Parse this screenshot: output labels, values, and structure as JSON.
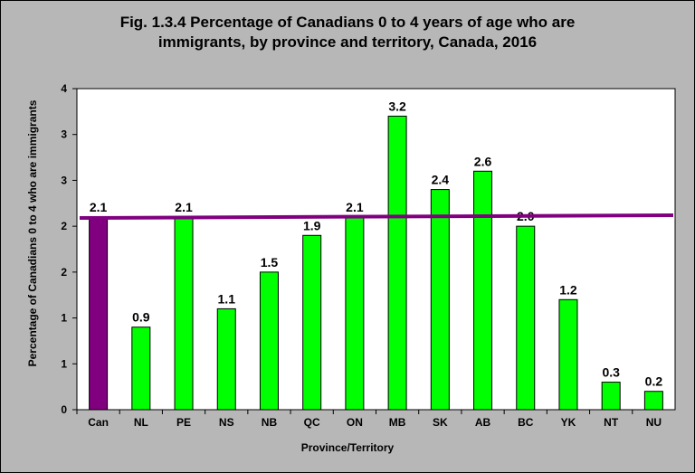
{
  "chart_data": {
    "type": "bar",
    "title_lines": [
      "Fig. 1.3.4 Percentage of Canadians 0 to 4 years of age who are",
      "immigrants, by province and territory, Canada, 2016"
    ],
    "xlabel": "Province/Territory",
    "ylabel": "Percentage of Canadians 0 to 4 who are immigrants",
    "ylim": [
      0,
      3.5
    ],
    "y_tick_labels": [
      "0",
      "1",
      "1",
      "2",
      "2",
      "3",
      "3",
      "4"
    ],
    "categories": [
      "Can",
      "NL",
      "PE",
      "NS",
      "NB",
      "QC",
      "ON",
      "MB",
      "SK",
      "AB",
      "BC",
      "YK",
      "NT",
      "NU"
    ],
    "values": [
      2.1,
      0.9,
      2.1,
      1.1,
      1.5,
      1.9,
      2.1,
      3.2,
      2.4,
      2.6,
      2.0,
      1.2,
      0.3,
      0.2
    ],
    "bar_heights": [
      2.1,
      0.9,
      2.1,
      1.1,
      1.5,
      1.9,
      2.1,
      3.2,
      2.4,
      2.6,
      2.0,
      1.2,
      0.3,
      0.2
    ],
    "data_labels": [
      "2.1",
      "0.9",
      "2.1",
      "1.1",
      "1.5",
      "1.9",
      "2.1",
      "3.2",
      "2.4",
      "2.6",
      "2.0",
      "1.2",
      "0.3",
      "0.2"
    ],
    "reference_line": {
      "value": 2.1
    },
    "grid": false,
    "colors": {
      "national_bar": "#800080",
      "province_bar": "#00ff00",
      "reference_line": "#800080",
      "plot_background": "#ffffff",
      "chart_background": "#b7b7b7"
    }
  }
}
